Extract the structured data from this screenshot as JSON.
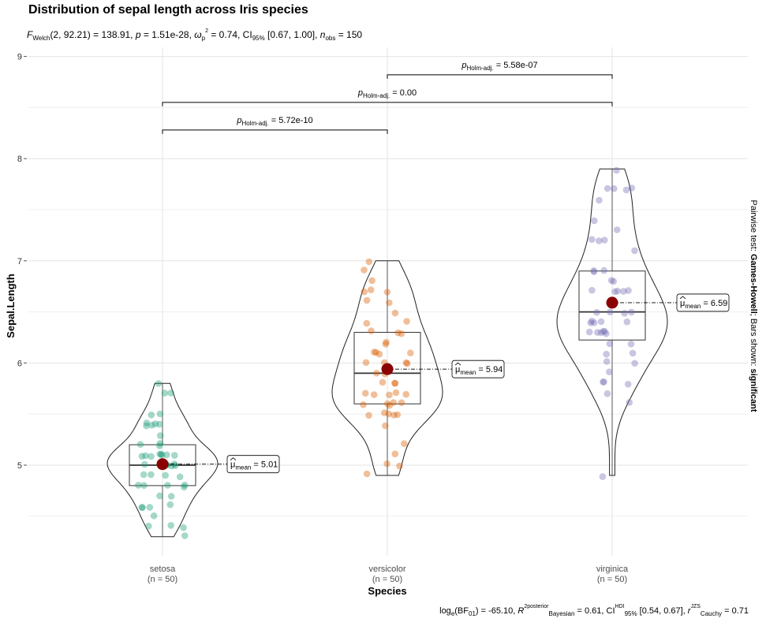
{
  "chart_data": {
    "type": "violin-box-scatter",
    "title": "Distribution of sepal length across Iris species",
    "subtitle": {
      "f_symbol": "F",
      "f_sub": "Welch",
      "f_args": "(2, 92.21) = 138.91, ",
      "p_symbol": "p",
      "p_value": " = 1.51e-28, ",
      "omega_symbol": "ω",
      "omega_sub": "p",
      "omega_sup": "2",
      "omega_value": " = 0.74, CI",
      "ci_sub": "95%",
      "ci_value": " [0.67, 1.00], ",
      "n_symbol": "n",
      "n_sub": "obs",
      "n_value": " = 150"
    },
    "caption": {
      "bf_text": "log",
      "bf_sub": "e",
      "bf_text2": "(BF",
      "bf_sub2": "01",
      "bf_value": ") = -65.10, ",
      "r2_symbol": "R",
      "r2_sup": "2posterior",
      "r2_sub": "Bayesian",
      "r2_value": " = 0.61, CI",
      "hdi_sup": "HDI",
      "hdi_sub": "95%",
      "hdi_value": " [0.54, 0.67], ",
      "r_symbol": "r",
      "r_sup": "JZS",
      "r_sub": "Cauchy",
      "r_value": " = 0.71"
    },
    "xlabel": "Species",
    "ylabel": "Sepal.Length",
    "ylim": [
      4.1,
      9.05
    ],
    "yticks": [
      5,
      6,
      7,
      8,
      9
    ],
    "grid": true,
    "right_label": {
      "prefix": "Pairwise test: ",
      "test": "Games-Howell",
      "middle": "; Bars shown: ",
      "shown": "significant"
    },
    "groups": [
      {
        "name": "setosa",
        "n_label": "(n = 50)",
        "color": "#1b9e77",
        "min": 4.3,
        "q1": 4.8,
        "median": 5.0,
        "q3": 5.2,
        "max": 5.8,
        "mean": 5.01,
        "mean_label": "5.01",
        "values": [
          5.1,
          4.9,
          4.7,
          4.6,
          5.0,
          5.4,
          4.6,
          5.0,
          4.4,
          4.9,
          5.4,
          4.8,
          4.8,
          4.3,
          5.8,
          5.7,
          5.4,
          5.1,
          5.7,
          5.1,
          5.4,
          5.1,
          4.6,
          5.1,
          4.8,
          5.0,
          5.0,
          5.2,
          5.2,
          4.7,
          4.8,
          5.4,
          5.2,
          5.5,
          4.9,
          5.0,
          5.5,
          4.9,
          4.4,
          5.1,
          5.0,
          4.5,
          4.4,
          5.0,
          5.1,
          4.8,
          5.1,
          4.6,
          5.3,
          5.0
        ]
      },
      {
        "name": "versicolor",
        "n_label": "(n = 50)",
        "color": "#d95f02",
        "min": 4.9,
        "q1": 5.6,
        "median": 5.9,
        "q3": 6.3,
        "max": 7.0,
        "mean": 5.94,
        "mean_label": "5.94",
        "values": [
          7.0,
          6.4,
          6.9,
          5.5,
          6.5,
          5.7,
          6.3,
          4.9,
          6.6,
          5.2,
          5.0,
          5.9,
          6.0,
          6.1,
          5.6,
          6.7,
          5.6,
          5.8,
          6.2,
          5.6,
          5.9,
          6.1,
          6.3,
          6.1,
          6.4,
          6.6,
          6.8,
          6.7,
          6.0,
          5.7,
          5.5,
          5.5,
          5.8,
          6.0,
          5.4,
          6.0,
          6.7,
          6.3,
          5.6,
          5.5,
          5.5,
          6.1,
          5.8,
          5.0,
          5.6,
          5.7,
          5.7,
          6.2,
          5.1,
          5.7
        ]
      },
      {
        "name": "virginica",
        "n_label": "(n = 50)",
        "color": "#7570b3",
        "min": 4.9,
        "q1": 6.225,
        "median": 6.5,
        "q3": 6.9,
        "max": 7.9,
        "mean": 6.59,
        "mean_label": "6.59",
        "values": [
          6.3,
          5.8,
          7.1,
          6.3,
          6.5,
          7.6,
          4.9,
          7.3,
          6.7,
          7.2,
          6.5,
          6.4,
          6.8,
          5.7,
          5.8,
          6.4,
          6.5,
          7.7,
          7.7,
          6.0,
          6.9,
          5.6,
          7.7,
          6.3,
          6.7,
          7.2,
          6.2,
          6.1,
          6.4,
          7.2,
          7.4,
          7.9,
          6.4,
          6.3,
          6.1,
          7.7,
          6.3,
          6.4,
          6.0,
          6.9,
          6.7,
          6.9,
          5.8,
          6.8,
          6.7,
          6.7,
          6.3,
          6.5,
          6.2,
          5.9
        ]
      }
    ],
    "mean_symbol": "μ",
    "mean_sub": "mean",
    "pairwise": [
      {
        "from": 0,
        "to": 1,
        "y": 8.28,
        "p_symbol": "p",
        "p_sub": "Holm-adj.",
        "p_value": " = 5.72e-10"
      },
      {
        "from": 0,
        "to": 2,
        "y": 8.55,
        "p_symbol": "p",
        "p_sub": "Holm-adj.",
        "p_value": " = 0.00"
      },
      {
        "from": 1,
        "to": 2,
        "y": 8.82,
        "p_symbol": "p",
        "p_sub": "Holm-adj.",
        "p_value": " = 5.58e-07"
      }
    ],
    "mean_point_color": "#8b0000"
  }
}
